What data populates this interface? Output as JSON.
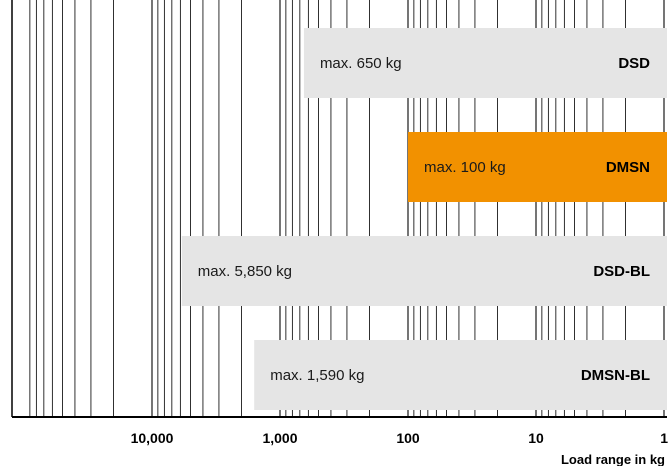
{
  "chart_data": {
    "type": "bar",
    "orientation": "horizontal",
    "x_scale": "log",
    "x_reversed": true,
    "xlim": [
      50000,
      1
    ],
    "xlabel": "Load range in kg",
    "ticks": [
      {
        "value": 10000,
        "label": "10,000"
      },
      {
        "value": 1000,
        "label": "1,000"
      },
      {
        "value": 100,
        "label": "100"
      },
      {
        "value": 10,
        "label": "10"
      },
      {
        "value": 1,
        "label": "1"
      }
    ],
    "grid": true,
    "series": [
      {
        "name": "DSD",
        "min": 1,
        "max": 650,
        "label": "max. 650 kg",
        "color": "#e5e5e5"
      },
      {
        "name": "DMSN",
        "min": 1,
        "max": 100,
        "label": "max. 100 kg",
        "color": "#f29100"
      },
      {
        "name": "DSD-BL",
        "min": 1,
        "max": 5850,
        "label": "max. 5,850 kg",
        "color": "#e5e5e5"
      },
      {
        "name": "DMSN-BL",
        "min": 1,
        "max": 1590,
        "label": "max. 1,590 kg",
        "color": "#e5e5e5"
      }
    ]
  }
}
